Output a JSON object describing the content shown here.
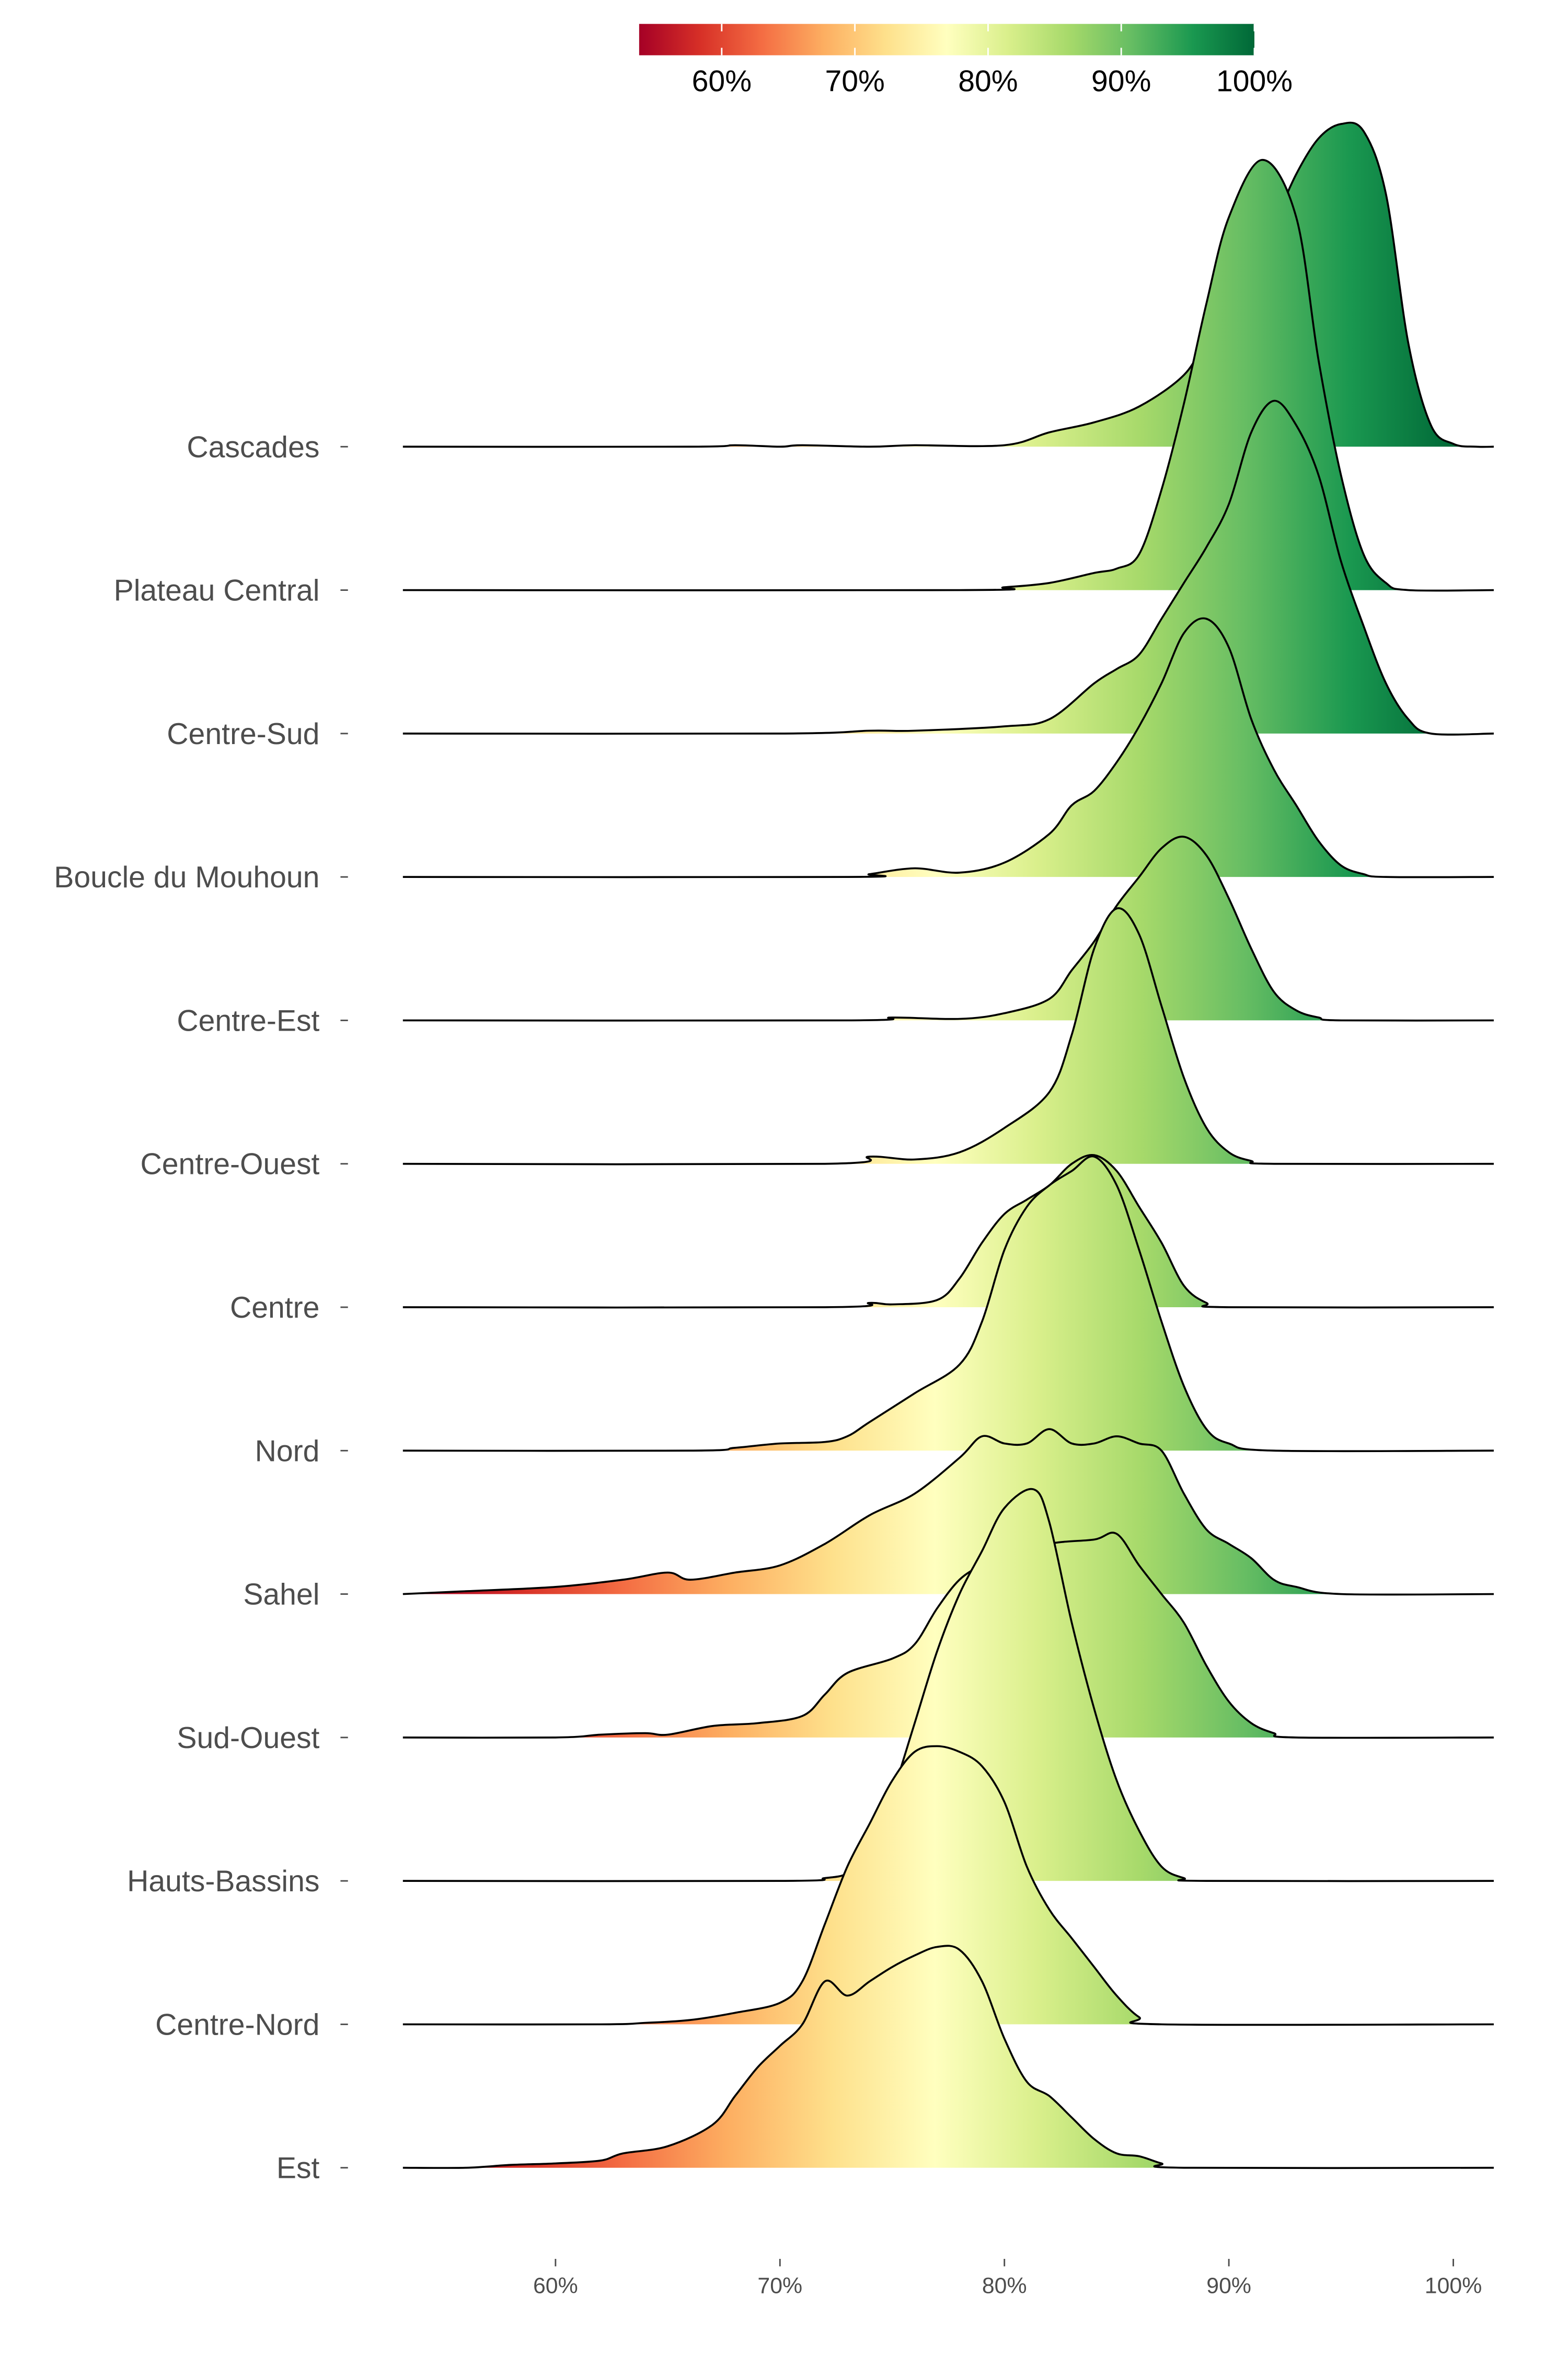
{
  "chart_data": {
    "type": "ridgeline",
    "title": "",
    "xlabel": "",
    "ylabel": "",
    "xlim": [
      53.2,
      101.8
    ],
    "x_ticks": [
      60,
      70,
      80,
      90,
      100
    ],
    "x_tick_labels": [
      "60%",
      "70%",
      "80%",
      "90%",
      "100%"
    ],
    "colorbar": {
      "placement": "top",
      "palette": [
        "#a50026",
        "#d73027",
        "#f46d43",
        "#fdae61",
        "#fee08b",
        "#ffffbf",
        "#d9ef8b",
        "#a6d96a",
        "#66bd63",
        "#1a9850",
        "#006837"
      ],
      "range": [
        53.8,
        100
      ],
      "ticks": [
        60,
        70,
        80,
        90,
        100
      ],
      "tick_labels": [
        "60%",
        "70%",
        "80%",
        "90%",
        "100%"
      ]
    },
    "density_unit": "height relative to row spacing",
    "series": [
      {
        "name": "Cascades",
        "points": [
          [
            53.2,
            0
          ],
          [
            66,
            0
          ],
          [
            68,
            0.01
          ],
          [
            70,
            0
          ],
          [
            71,
            0.01
          ],
          [
            74,
            0
          ],
          [
            76,
            0.01
          ],
          [
            80,
            0.01
          ],
          [
            82,
            0.1
          ],
          [
            84,
            0.17
          ],
          [
            86,
            0.28
          ],
          [
            88,
            0.5
          ],
          [
            89,
            0.75
          ],
          [
            90,
            0.95
          ],
          [
            91,
            1.2
          ],
          [
            92,
            1.55
          ],
          [
            93,
            1.9
          ],
          [
            94,
            2.15
          ],
          [
            95,
            2.25
          ],
          [
            96,
            2.2
          ],
          [
            97,
            1.76
          ],
          [
            98,
            0.72
          ],
          [
            99,
            0.15
          ],
          [
            100,
            0.02
          ],
          [
            101,
            0
          ],
          [
            101.8,
            0
          ]
        ]
      },
      {
        "name": "Plateau Central",
        "points": [
          [
            53.2,
            0
          ],
          [
            78,
            0
          ],
          [
            80,
            0.02
          ],
          [
            82,
            0.05
          ],
          [
            84,
            0.12
          ],
          [
            85,
            0.15
          ],
          [
            86,
            0.25
          ],
          [
            87,
            0.7
          ],
          [
            88,
            1.3
          ],
          [
            89,
            2.0
          ],
          [
            90,
            2.6
          ],
          [
            91.5,
            3.0
          ],
          [
            93,
            2.6
          ],
          [
            94,
            1.6
          ],
          [
            95,
            0.8
          ],
          [
            96,
            0.25
          ],
          [
            97,
            0.05
          ],
          [
            98,
            0
          ],
          [
            101.8,
            0
          ]
        ]
      },
      {
        "name": "Centre-Sud",
        "points": [
          [
            53.2,
            0
          ],
          [
            70,
            0
          ],
          [
            74,
            0.02
          ],
          [
            76,
            0.02
          ],
          [
            80,
            0.05
          ],
          [
            82,
            0.1
          ],
          [
            84,
            0.35
          ],
          [
            85,
            0.45
          ],
          [
            86,
            0.55
          ],
          [
            87,
            0.8
          ],
          [
            88,
            1.05
          ],
          [
            89,
            1.3
          ],
          [
            90,
            1.6
          ],
          [
            91,
            2.1
          ],
          [
            92,
            2.32
          ],
          [
            93,
            2.15
          ],
          [
            94,
            1.8
          ],
          [
            95,
            1.2
          ],
          [
            96,
            0.75
          ],
          [
            97,
            0.35
          ],
          [
            98,
            0.1
          ],
          [
            99,
            0
          ],
          [
            101.8,
            0
          ]
        ]
      },
      {
        "name": "Boucle du Mouhoun",
        "points": [
          [
            53.2,
            0
          ],
          [
            73,
            0
          ],
          [
            74,
            0.02
          ],
          [
            76,
            0.06
          ],
          [
            78,
            0.03
          ],
          [
            80,
            0.1
          ],
          [
            82,
            0.3
          ],
          [
            83,
            0.5
          ],
          [
            84,
            0.6
          ],
          [
            85,
            0.8
          ],
          [
            86,
            1.05
          ],
          [
            87,
            1.35
          ],
          [
            88,
            1.7
          ],
          [
            89,
            1.8
          ],
          [
            90,
            1.6
          ],
          [
            91,
            1.1
          ],
          [
            92,
            0.75
          ],
          [
            93,
            0.5
          ],
          [
            94,
            0.25
          ],
          [
            95,
            0.08
          ],
          [
            96,
            0.02
          ],
          [
            97,
            0
          ],
          [
            101.8,
            0
          ]
        ]
      },
      {
        "name": "Centre-Est",
        "points": [
          [
            53.2,
            0
          ],
          [
            73,
            0
          ],
          [
            75,
            0.02
          ],
          [
            78,
            0.01
          ],
          [
            80,
            0.05
          ],
          [
            82,
            0.15
          ],
          [
            83,
            0.35
          ],
          [
            84,
            0.55
          ],
          [
            85,
            0.8
          ],
          [
            86,
            1.0
          ],
          [
            87,
            1.2
          ],
          [
            88,
            1.28
          ],
          [
            89,
            1.15
          ],
          [
            90,
            0.85
          ],
          [
            91,
            0.5
          ],
          [
            92,
            0.2
          ],
          [
            93,
            0.07
          ],
          [
            94,
            0.02
          ],
          [
            95,
            0
          ],
          [
            101.8,
            0
          ]
        ]
      },
      {
        "name": "Centre-Ouest",
        "points": [
          [
            53.2,
            0
          ],
          [
            72,
            0
          ],
          [
            74,
            0.05
          ],
          [
            76,
            0.03
          ],
          [
            78,
            0.08
          ],
          [
            80,
            0.25
          ],
          [
            82,
            0.5
          ],
          [
            83,
            0.9
          ],
          [
            84,
            1.5
          ],
          [
            85,
            1.78
          ],
          [
            86,
            1.6
          ],
          [
            87,
            1.1
          ],
          [
            88,
            0.6
          ],
          [
            89,
            0.25
          ],
          [
            90,
            0.08
          ],
          [
            91,
            0.02
          ],
          [
            92,
            0
          ],
          [
            101.8,
            0
          ]
        ]
      },
      {
        "name": "Centre",
        "points": [
          [
            53.2,
            0
          ],
          [
            72,
            0
          ],
          [
            74,
            0.03
          ],
          [
            75,
            0.02
          ],
          [
            77,
            0.05
          ],
          [
            78,
            0.2
          ],
          [
            79,
            0.45
          ],
          [
            80,
            0.65
          ],
          [
            81,
            0.75
          ],
          [
            82,
            0.85
          ],
          [
            83,
            1.0
          ],
          [
            84,
            1.06
          ],
          [
            85,
            0.95
          ],
          [
            86,
            0.7
          ],
          [
            87,
            0.45
          ],
          [
            88,
            0.15
          ],
          [
            89,
            0.03
          ],
          [
            90,
            0
          ],
          [
            101.8,
            0
          ]
        ]
      },
      {
        "name": "Nord",
        "points": [
          [
            53.2,
            0
          ],
          [
            66,
            0
          ],
          [
            68,
            0.02
          ],
          [
            70,
            0.05
          ],
          [
            72,
            0.06
          ],
          [
            73,
            0.1
          ],
          [
            74,
            0.2
          ],
          [
            76,
            0.4
          ],
          [
            78,
            0.6
          ],
          [
            79,
            0.9
          ],
          [
            80,
            1.4
          ],
          [
            81,
            1.7
          ],
          [
            82,
            1.85
          ],
          [
            83,
            1.95
          ],
          [
            84,
            2.05
          ],
          [
            85,
            1.85
          ],
          [
            86,
            1.4
          ],
          [
            87,
            0.9
          ],
          [
            88,
            0.45
          ],
          [
            89,
            0.15
          ],
          [
            90,
            0.05
          ],
          [
            92,
            0
          ],
          [
            101.8,
            0
          ]
        ]
      },
      {
        "name": "Sahel",
        "points": [
          [
            53.2,
            0
          ],
          [
            56,
            0.02
          ],
          [
            60,
            0.05
          ],
          [
            63,
            0.1
          ],
          [
            65,
            0.15
          ],
          [
            66,
            0.1
          ],
          [
            68,
            0.15
          ],
          [
            70,
            0.2
          ],
          [
            72,
            0.35
          ],
          [
            74,
            0.55
          ],
          [
            76,
            0.7
          ],
          [
            78,
            0.95
          ],
          [
            79,
            1.1
          ],
          [
            80,
            1.05
          ],
          [
            81,
            1.05
          ],
          [
            82,
            1.15
          ],
          [
            83,
            1.05
          ],
          [
            84,
            1.05
          ],
          [
            85,
            1.1
          ],
          [
            86,
            1.05
          ],
          [
            87,
            1.0
          ],
          [
            88,
            0.7
          ],
          [
            89,
            0.45
          ],
          [
            90,
            0.35
          ],
          [
            91,
            0.25
          ],
          [
            92,
            0.1
          ],
          [
            93,
            0.05
          ],
          [
            95,
            0
          ],
          [
            101.8,
            0
          ]
        ]
      },
      {
        "name": "Sud-Ouest",
        "points": [
          [
            53.2,
            0
          ],
          [
            60,
            0
          ],
          [
            62,
            0.02
          ],
          [
            64,
            0.03
          ],
          [
            65,
            0.02
          ],
          [
            67,
            0.08
          ],
          [
            69,
            0.1
          ],
          [
            71,
            0.15
          ],
          [
            72,
            0.3
          ],
          [
            73,
            0.45
          ],
          [
            75,
            0.55
          ],
          [
            76,
            0.65
          ],
          [
            77,
            0.9
          ],
          [
            78,
            1.1
          ],
          [
            79,
            1.2
          ],
          [
            80,
            1.25
          ],
          [
            82,
            1.35
          ],
          [
            84,
            1.38
          ],
          [
            85,
            1.42
          ],
          [
            86,
            1.2
          ],
          [
            87,
            1.0
          ],
          [
            88,
            0.8
          ],
          [
            89,
            0.5
          ],
          [
            90,
            0.25
          ],
          [
            91,
            0.1
          ],
          [
            92,
            0.03
          ],
          [
            93,
            0
          ],
          [
            101.8,
            0
          ]
        ]
      },
      {
        "name": "Hauts-Bassins",
        "points": [
          [
            53.2,
            0
          ],
          [
            70,
            0
          ],
          [
            72,
            0.02
          ],
          [
            73,
            0.05
          ],
          [
            74,
            0.15
          ],
          [
            75,
            0.6
          ],
          [
            76,
            1.1
          ],
          [
            77,
            1.6
          ],
          [
            78,
            2.0
          ],
          [
            79,
            2.3
          ],
          [
            80,
            2.6
          ],
          [
            81.3,
            2.73
          ],
          [
            82,
            2.5
          ],
          [
            83,
            1.8
          ],
          [
            84,
            1.2
          ],
          [
            85,
            0.7
          ],
          [
            86,
            0.35
          ],
          [
            87,
            0.1
          ],
          [
            88,
            0.02
          ],
          [
            89,
            0
          ],
          [
            101.8,
            0
          ]
        ]
      },
      {
        "name": "Centre-Nord",
        "points": [
          [
            53.2,
            0
          ],
          [
            62,
            0
          ],
          [
            64,
            0.01
          ],
          [
            66,
            0.03
          ],
          [
            68,
            0.08
          ],
          [
            70,
            0.15
          ],
          [
            71,
            0.3
          ],
          [
            72,
            0.7
          ],
          [
            73,
            1.1
          ],
          [
            74,
            1.4
          ],
          [
            75,
            1.7
          ],
          [
            76,
            1.9
          ],
          [
            77,
            1.94
          ],
          [
            78,
            1.9
          ],
          [
            79,
            1.8
          ],
          [
            80,
            1.55
          ],
          [
            81,
            1.1
          ],
          [
            82,
            0.8
          ],
          [
            83,
            0.6
          ],
          [
            84,
            0.4
          ],
          [
            85,
            0.2
          ],
          [
            86,
            0.05
          ],
          [
            87,
            0
          ],
          [
            101.8,
            0
          ]
        ]
      },
      {
        "name": "Est",
        "points": [
          [
            53.2,
            0
          ],
          [
            56,
            0
          ],
          [
            58,
            0.02
          ],
          [
            60,
            0.03
          ],
          [
            62,
            0.05
          ],
          [
            63,
            0.1
          ],
          [
            65,
            0.15
          ],
          [
            67,
            0.3
          ],
          [
            68,
            0.5
          ],
          [
            69,
            0.7
          ],
          [
            70,
            0.85
          ],
          [
            71,
            1.0
          ],
          [
            72,
            1.3
          ],
          [
            73,
            1.2
          ],
          [
            74,
            1.3
          ],
          [
            75,
            1.4
          ],
          [
            76,
            1.48
          ],
          [
            77,
            1.54
          ],
          [
            78,
            1.52
          ],
          [
            79,
            1.3
          ],
          [
            80,
            0.9
          ],
          [
            81,
            0.6
          ],
          [
            82,
            0.5
          ],
          [
            83,
            0.35
          ],
          [
            84,
            0.2
          ],
          [
            85,
            0.1
          ],
          [
            86,
            0.08
          ],
          [
            87,
            0.03
          ],
          [
            88,
            0
          ],
          [
            101.8,
            0
          ]
        ]
      }
    ]
  }
}
